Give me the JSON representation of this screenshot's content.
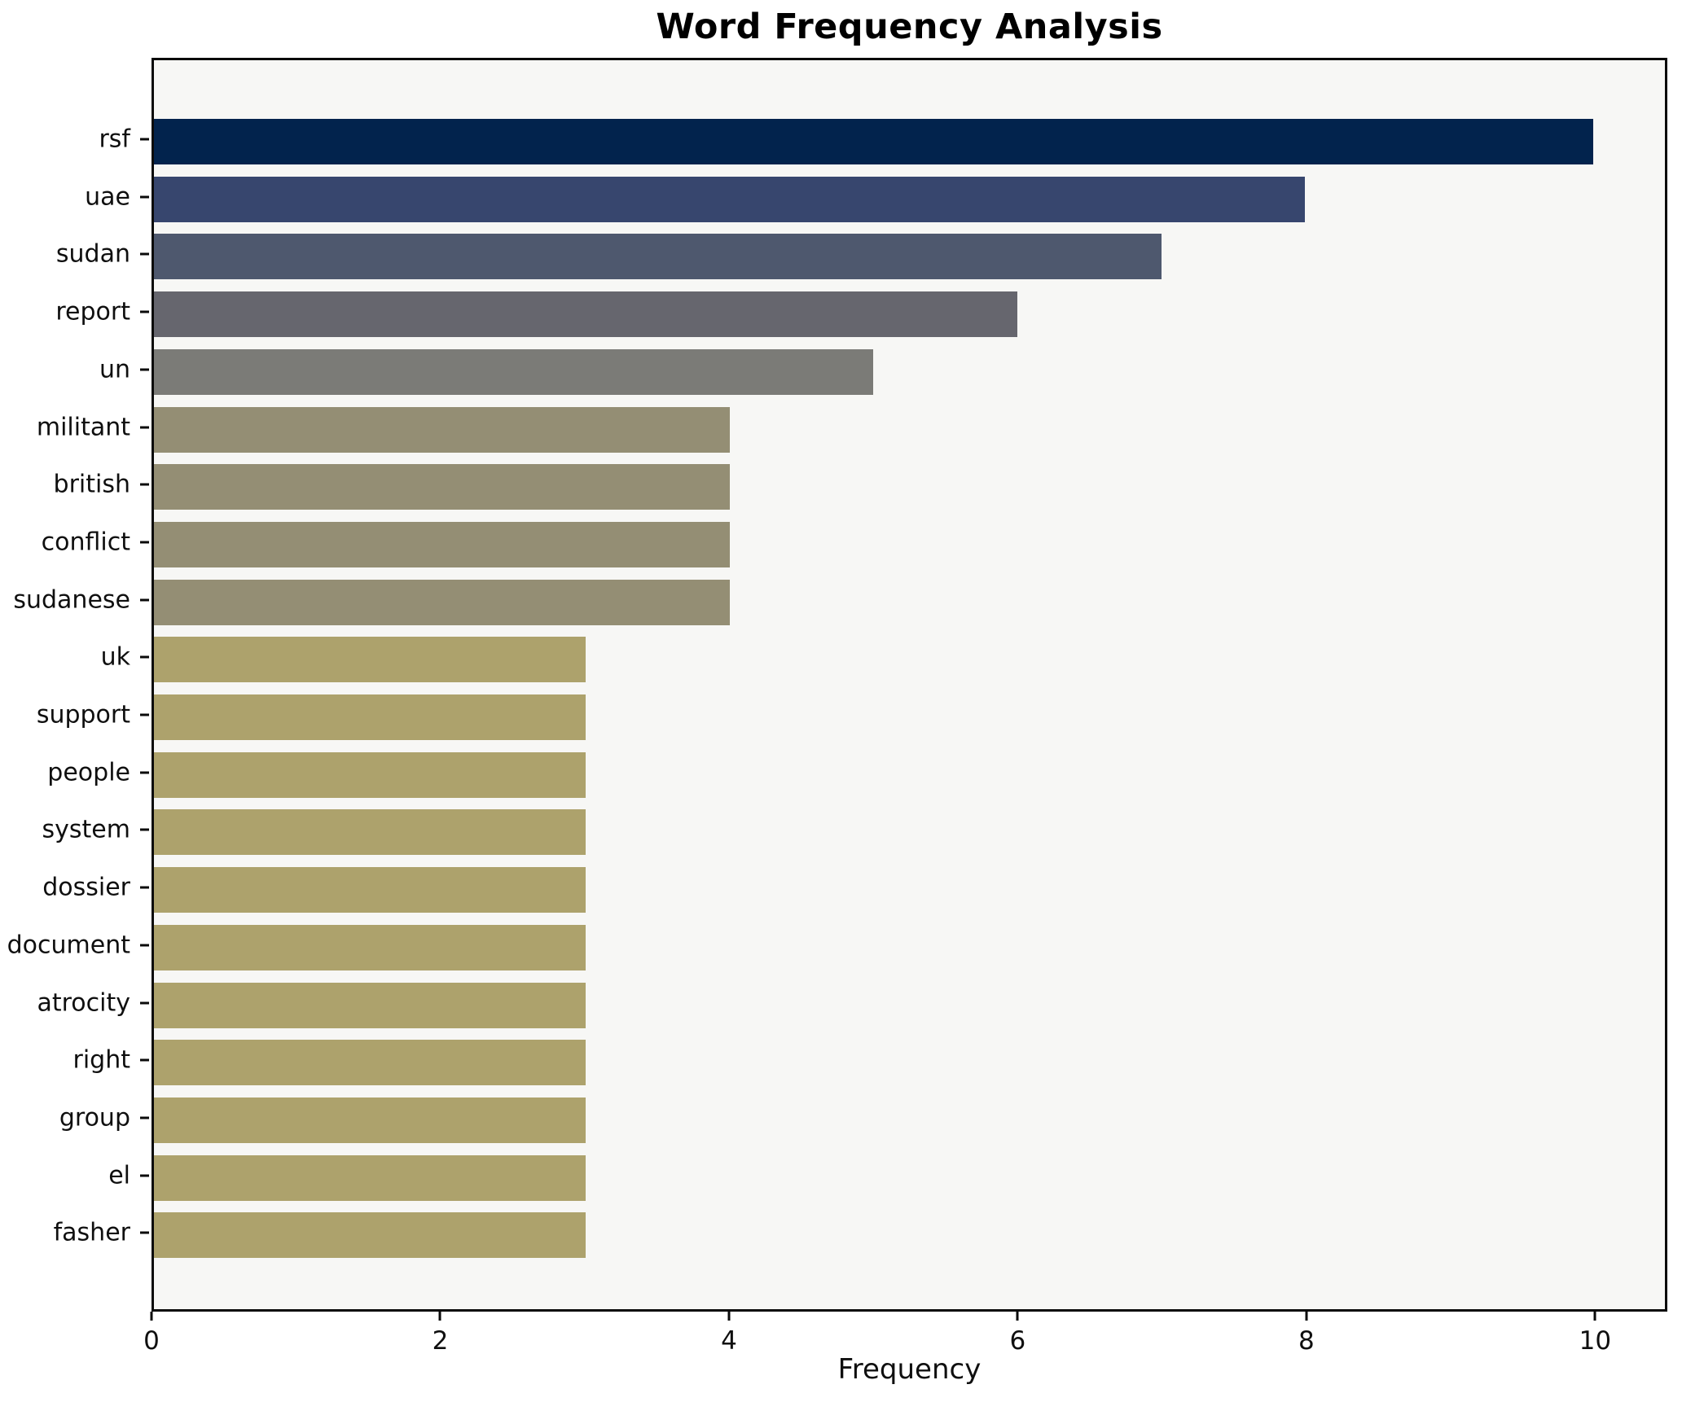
{
  "chart_data": {
    "type": "bar",
    "orientation": "horizontal",
    "title": "Word Frequency Analysis",
    "xlabel": "Frequency",
    "ylabel": "",
    "categories": [
      "rsf",
      "uae",
      "sudan",
      "report",
      "un",
      "militant",
      "british",
      "conflict",
      "sudanese",
      "uk",
      "support",
      "people",
      "system",
      "dossier",
      "document",
      "atrocity",
      "right",
      "group",
      "el",
      "fasher"
    ],
    "values": [
      10,
      8,
      7,
      6,
      5,
      4,
      4,
      4,
      4,
      3,
      3,
      3,
      3,
      3,
      3,
      3,
      3,
      3,
      3,
      3
    ],
    "bar_colors": [
      "#02234d",
      "#37466e",
      "#4e586e",
      "#66666e",
      "#7b7b77",
      "#948e74",
      "#948e74",
      "#948e74",
      "#948e74",
      "#ada26c",
      "#ada26c",
      "#ada26c",
      "#ada26c",
      "#ada26c",
      "#ada26c",
      "#ada26c",
      "#ada26c",
      "#ada26c",
      "#ada26c",
      "#ada26c"
    ],
    "xlim": [
      0,
      10.5
    ],
    "xticks": [
      0,
      2,
      4,
      6,
      8,
      10
    ],
    "grid": false,
    "legend": null,
    "plot_background": "#f7f7f5",
    "figure_background": "#ffffff",
    "colormap": "cividis"
  }
}
